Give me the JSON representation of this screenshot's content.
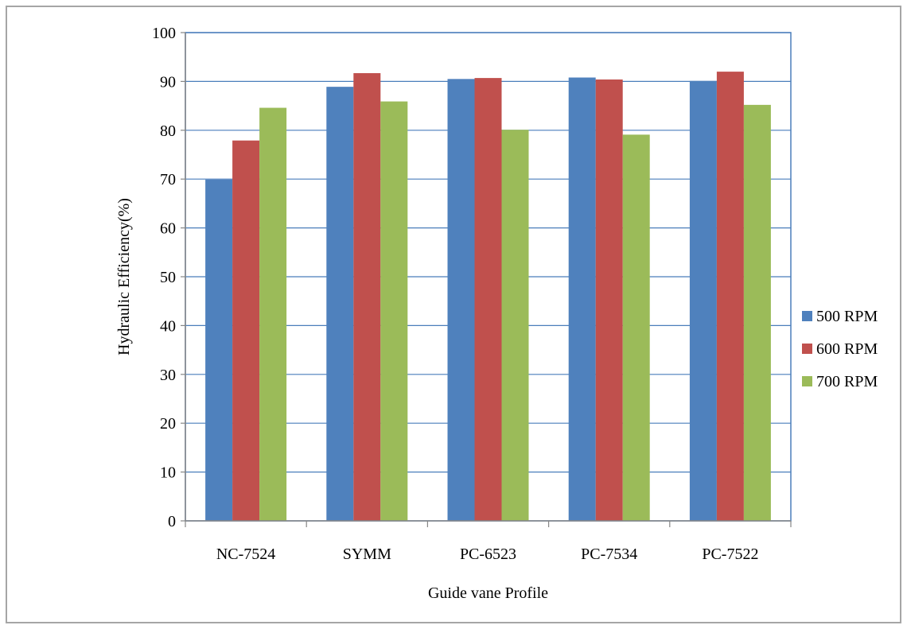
{
  "chart_data": {
    "type": "bar",
    "categories": [
      "NC-7524",
      "SYMM",
      "PC-6523",
      "PC-7534",
      "PC-7522"
    ],
    "series": [
      {
        "name": "500 RPM",
        "color": "#4f81bd",
        "values": [
          69.9,
          88.9,
          90.5,
          90.8,
          90.1
        ]
      },
      {
        "name": "600 RPM",
        "color": "#c0504d",
        "values": [
          77.9,
          91.7,
          90.7,
          90.4,
          92.0
        ]
      },
      {
        "name": "700 RPM",
        "color": "#9bbb59",
        "values": [
          84.6,
          85.9,
          80.1,
          79.1,
          85.2
        ]
      }
    ],
    "xlabel": "Guide vane Profile",
    "ylabel": "Hydraulic Efficiency(%)",
    "ylim": [
      0,
      100
    ],
    "yticks": [
      0,
      10,
      20,
      30,
      40,
      50,
      60,
      70,
      80,
      90,
      100
    ],
    "grid": true,
    "legend_position": "right"
  }
}
